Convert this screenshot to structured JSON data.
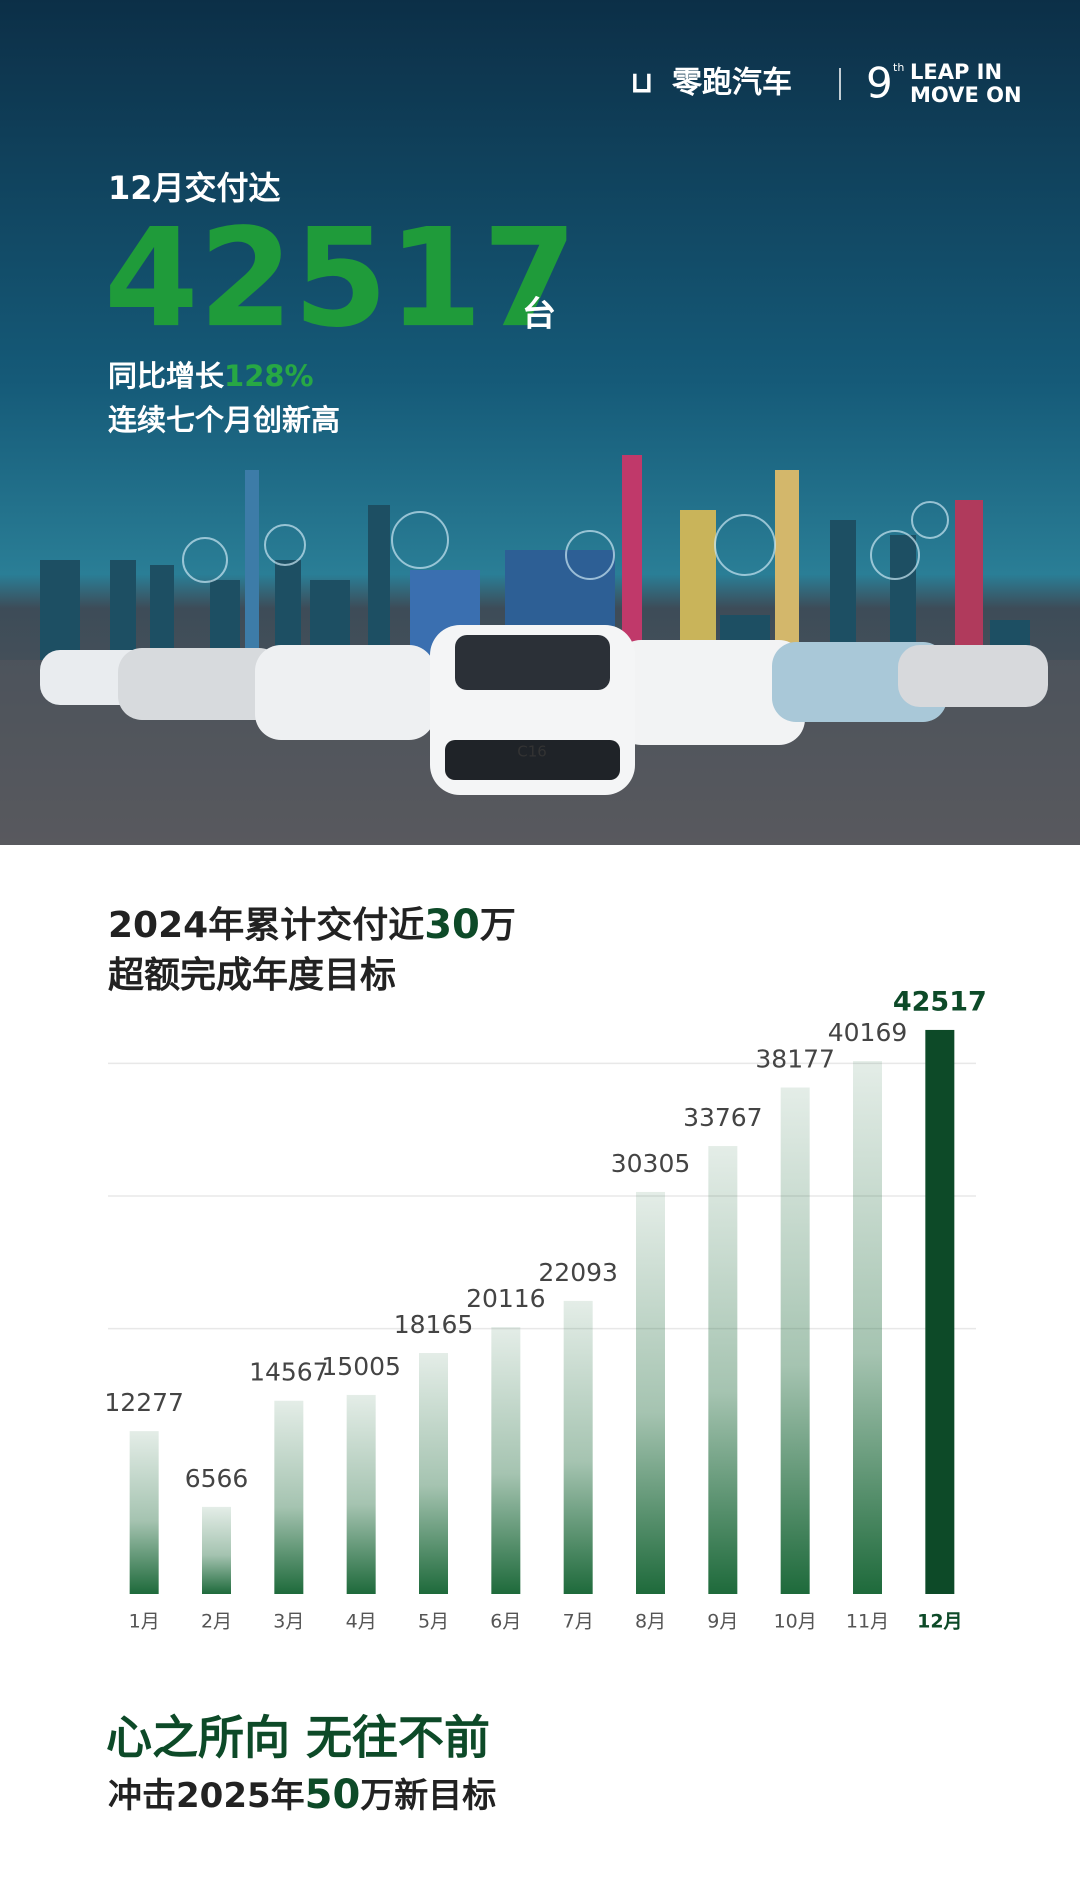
{
  "header": {
    "brand": "零跑汽车",
    "edition": "9",
    "edition_suffix": "th",
    "slogan_1": "LEAP IN",
    "slogan_2": "MOVE ON"
  },
  "hero": {
    "lead": "12月交付达",
    "number": "42517",
    "unit": "台",
    "growth_label": "同比增长",
    "growth_value": "128%",
    "note": "连续七个月创新高",
    "car_badge": "C16"
  },
  "chart_data": {
    "type": "bar",
    "title": [
      "2024年累计交付近",
      "30",
      "万"
    ],
    "subtitle": "超额完成年度目标",
    "categories": [
      "1月",
      "2月",
      "3月",
      "4月",
      "5月",
      "6月",
      "7月",
      "8月",
      "9月",
      "10月",
      "11月",
      "12月"
    ],
    "values": [
      12277,
      6566,
      14567,
      15005,
      18165,
      20116,
      22093,
      30305,
      33767,
      38177,
      40169,
      42517
    ],
    "color": "#1e6a3b",
    "highlight_category": "12月",
    "highlight_color": "#0d4a28",
    "ylim": [
      0,
      45000
    ],
    "yticks": [
      20000,
      30000,
      40000
    ],
    "grid": true
  },
  "footer": {
    "slogan": "心之所向 无往不前",
    "goal": [
      "冲击2025年",
      "50",
      "万新目标"
    ]
  }
}
